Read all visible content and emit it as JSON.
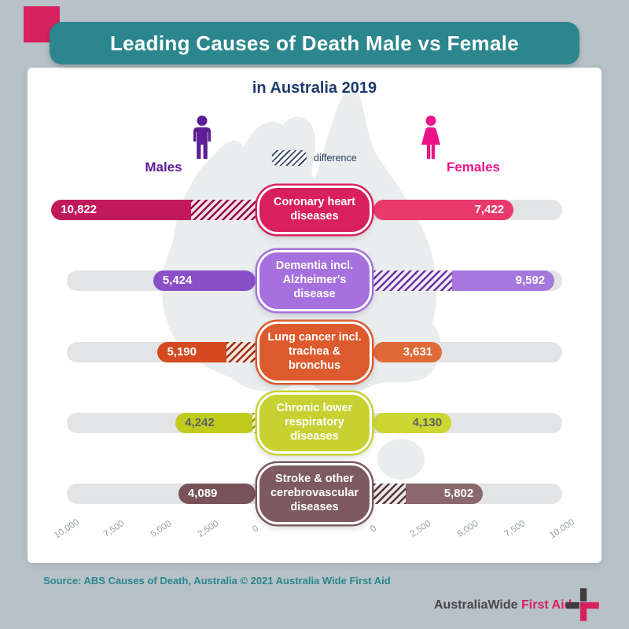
{
  "title": "Leading Causes of Death Male vs Female",
  "subtitle": "in Australia 2019",
  "legend": {
    "males_label": "Males",
    "females_label": "Females",
    "difference_label": "difference"
  },
  "chart_data": {
    "type": "bar",
    "variant": "butterfly (males left, females right, hatched segment = difference)",
    "title": "Leading Causes of Death Male vs Female",
    "subtitle": "in Australia 2019",
    "categories": [
      "Coronary heart diseases",
      "Dementia incl. Alzheimer's disease",
      "Lung cancer incl. trachea & bronchus",
      "Chronic lower respiratory diseases",
      "Stroke & other cerebrovascular diseases"
    ],
    "series": [
      {
        "name": "Males",
        "color": "#5c1d96",
        "values": [
          10822,
          5424,
          5190,
          4242,
          4089
        ]
      },
      {
        "name": "Females",
        "color": "#ec1289",
        "values": [
          7422,
          9592,
          3631,
          4130,
          5802
        ]
      }
    ],
    "axis": {
      "max": 10000,
      "ticks_left": [
        "10,000",
        "7,500",
        "5,000",
        "2,500",
        "0"
      ],
      "ticks_right": [
        "0",
        "2,500",
        "5,000",
        "7,500",
        "10,000"
      ]
    },
    "legend_position": "top-center",
    "grid": false
  },
  "rows": [
    {
      "label": "Coronary heart diseases",
      "male_value": "10,822",
      "female_value": "7,422",
      "value_color": "#ffffff",
      "colors": {
        "male": "#c11a5a",
        "female": "#e73a6b",
        "box": "#d8205f",
        "hatch": "#8f1040"
      }
    },
    {
      "label": "Dementia incl. Alzheimer's disease",
      "male_value": "5,424",
      "female_value": "9,592",
      "value_color": "#ffffff",
      "colors": {
        "male": "#8a4fc6",
        "female": "#a678dd",
        "box": "#a671de",
        "hatch": "#6a35a3"
      }
    },
    {
      "label": "Lung cancer incl. trachea & bronchus",
      "male_value": "5,190",
      "female_value": "3,631",
      "value_color": "#ffffff",
      "colors": {
        "male": "#d4491f",
        "female": "#e06a38",
        "box": "#dd5a2e",
        "hatch": "#9c3313"
      }
    },
    {
      "label": "Chronic lower respiratory diseases",
      "male_value": "4,242",
      "female_value": "4,130",
      "value_color": "#5c6163",
      "colors": {
        "male": "#c0cb1d",
        "female": "#cdd732",
        "box": "#c7d232",
        "hatch": "#99a413"
      }
    },
    {
      "label": "Stroke & other cerebrovascular diseases",
      "male_value": "4,089",
      "female_value": "5,802",
      "value_color": "#ffffff",
      "colors": {
        "male": "#775359",
        "female": "#8a686e",
        "box": "#7d5a61",
        "hatch": "#53383d"
      }
    }
  ],
  "source": "Source: ABS Causes of Death, Australia © 2021 Australia Wide First Aid",
  "logo": {
    "part1": "AustraliaWide",
    "part2": " First Aid"
  }
}
